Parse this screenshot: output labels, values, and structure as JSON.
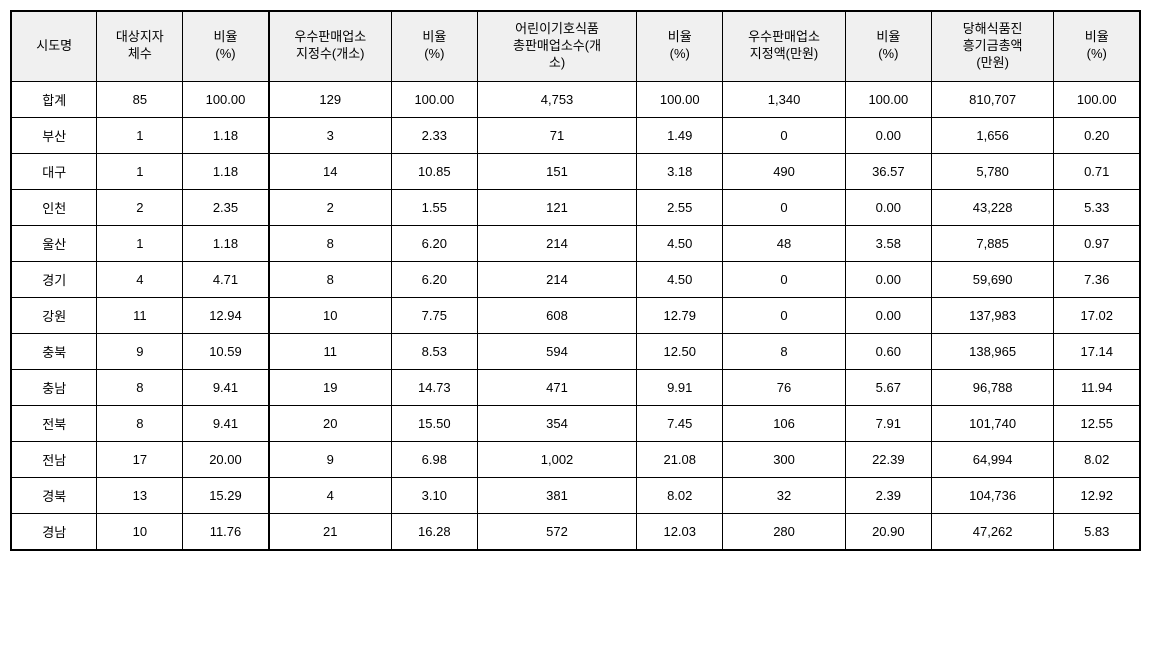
{
  "table": {
    "type": "table",
    "background_color": "#ffffff",
    "header_bg_color": "#f0f0f0",
    "border_color": "#000000",
    "font_size": 13,
    "columns": [
      {
        "key": "region",
        "label": "시도명",
        "width": 70
      },
      {
        "key": "target_gov",
        "label": "대상지자\n체수",
        "width": 70
      },
      {
        "key": "ratio1",
        "label": "비율\n(%)",
        "width": 70
      },
      {
        "key": "excellent_count",
        "label": "우수판매업소\n지정수(개소)",
        "width": 100
      },
      {
        "key": "ratio2",
        "label": "비율\n(%)",
        "width": 70
      },
      {
        "key": "child_food_total",
        "label": "어린이기호식품\n총판매업소수(개\n소)",
        "width": 130
      },
      {
        "key": "ratio3",
        "label": "비율\n(%)",
        "width": 70
      },
      {
        "key": "excellent_amount",
        "label": "우수판매업소\n지정액(만원)",
        "width": 100
      },
      {
        "key": "ratio4",
        "label": "비율\n(%)",
        "width": 70
      },
      {
        "key": "food_promo_total",
        "label": "당해식품진\n흥기금총액\n(만원)",
        "width": 100
      },
      {
        "key": "ratio5",
        "label": "비율\n(%)",
        "width": 70
      }
    ],
    "rows": [
      {
        "region": "합계",
        "target_gov": "85",
        "ratio1": "100.00",
        "excellent_count": "129",
        "ratio2": "100.00",
        "child_food_total": "4,753",
        "ratio3": "100.00",
        "excellent_amount": "1,340",
        "ratio4": "100.00",
        "food_promo_total": "810,707",
        "ratio5": "100.00"
      },
      {
        "region": "부산",
        "target_gov": "1",
        "ratio1": "1.18",
        "excellent_count": "3",
        "ratio2": "2.33",
        "child_food_total": "71",
        "ratio3": "1.49",
        "excellent_amount": "0",
        "ratio4": "0.00",
        "food_promo_total": "1,656",
        "ratio5": "0.20"
      },
      {
        "region": "대구",
        "target_gov": "1",
        "ratio1": "1.18",
        "excellent_count": "14",
        "ratio2": "10.85",
        "child_food_total": "151",
        "ratio3": "3.18",
        "excellent_amount": "490",
        "ratio4": "36.57",
        "food_promo_total": "5,780",
        "ratio5": "0.71"
      },
      {
        "region": "인천",
        "target_gov": "2",
        "ratio1": "2.35",
        "excellent_count": "2",
        "ratio2": "1.55",
        "child_food_total": "121",
        "ratio3": "2.55",
        "excellent_amount": "0",
        "ratio4": "0.00",
        "food_promo_total": "43,228",
        "ratio5": "5.33"
      },
      {
        "region": "울산",
        "target_gov": "1",
        "ratio1": "1.18",
        "excellent_count": "8",
        "ratio2": "6.20",
        "child_food_total": "214",
        "ratio3": "4.50",
        "excellent_amount": "48",
        "ratio4": "3.58",
        "food_promo_total": "7,885",
        "ratio5": "0.97"
      },
      {
        "region": "경기",
        "target_gov": "4",
        "ratio1": "4.71",
        "excellent_count": "8",
        "ratio2": "6.20",
        "child_food_total": "214",
        "ratio3": "4.50",
        "excellent_amount": "0",
        "ratio4": "0.00",
        "food_promo_total": "59,690",
        "ratio5": "7.36"
      },
      {
        "region": "강원",
        "target_gov": "11",
        "ratio1": "12.94",
        "excellent_count": "10",
        "ratio2": "7.75",
        "child_food_total": "608",
        "ratio3": "12.79",
        "excellent_amount": "0",
        "ratio4": "0.00",
        "food_promo_total": "137,983",
        "ratio5": "17.02"
      },
      {
        "region": "충북",
        "target_gov": "9",
        "ratio1": "10.59",
        "excellent_count": "11",
        "ratio2": "8.53",
        "child_food_total": "594",
        "ratio3": "12.50",
        "excellent_amount": "8",
        "ratio4": "0.60",
        "food_promo_total": "138,965",
        "ratio5": "17.14"
      },
      {
        "region": "충남",
        "target_gov": "8",
        "ratio1": "9.41",
        "excellent_count": "19",
        "ratio2": "14.73",
        "child_food_total": "471",
        "ratio3": "9.91",
        "excellent_amount": "76",
        "ratio4": "5.67",
        "food_promo_total": "96,788",
        "ratio5": "11.94"
      },
      {
        "region": "전북",
        "target_gov": "8",
        "ratio1": "9.41",
        "excellent_count": "20",
        "ratio2": "15.50",
        "child_food_total": "354",
        "ratio3": "7.45",
        "excellent_amount": "106",
        "ratio4": "7.91",
        "food_promo_total": "101,740",
        "ratio5": "12.55"
      },
      {
        "region": "전남",
        "target_gov": "17",
        "ratio1": "20.00",
        "excellent_count": "9",
        "ratio2": "6.98",
        "child_food_total": "1,002",
        "ratio3": "21.08",
        "excellent_amount": "300",
        "ratio4": "22.39",
        "food_promo_total": "64,994",
        "ratio5": "8.02"
      },
      {
        "region": "경북",
        "target_gov": "13",
        "ratio1": "15.29",
        "excellent_count": "4",
        "ratio2": "3.10",
        "child_food_total": "381",
        "ratio3": "8.02",
        "excellent_amount": "32",
        "ratio4": "2.39",
        "food_promo_total": "104,736",
        "ratio5": "12.92"
      },
      {
        "region": "경남",
        "target_gov": "10",
        "ratio1": "11.76",
        "excellent_count": "21",
        "ratio2": "16.28",
        "child_food_total": "572",
        "ratio3": "12.03",
        "excellent_amount": "280",
        "ratio4": "20.90",
        "food_promo_total": "47,262",
        "ratio5": "5.83"
      }
    ]
  }
}
